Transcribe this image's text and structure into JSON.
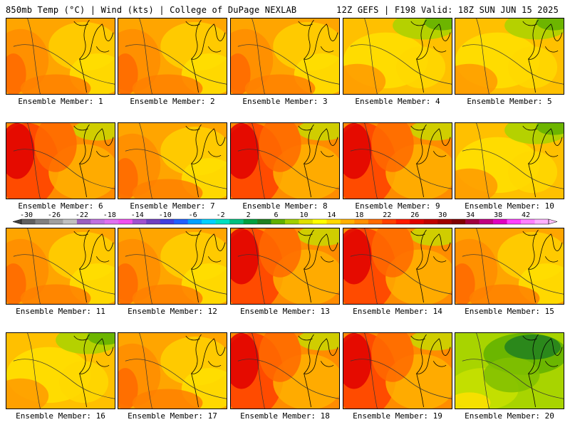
{
  "header": {
    "left": "850mb Temp (°C) | Wind (kts) | College of DuPage NEXLAB",
    "right": "12Z GEFS | F198 Valid: 18Z SUN JUN 15 2025"
  },
  "colorbar": {
    "labels": [
      "-30",
      "-26",
      "-22",
      "-18",
      "-14",
      "-10",
      "-6",
      "-2",
      "2",
      "6",
      "10",
      "14",
      "18",
      "22",
      "26",
      "30",
      "34",
      "38",
      "42"
    ],
    "colors": [
      "#5f5f5f",
      "#808080",
      "#a0a0a0",
      "#c0c0c0",
      "#9a5fbf",
      "#c070e0",
      "#e070f0",
      "#f050f0",
      "#a050d0",
      "#7040c0",
      "#4040e0",
      "#2060ff",
      "#00a0ff",
      "#00d0ff",
      "#00e0c0",
      "#00c080",
      "#00a040",
      "#208020",
      "#60b000",
      "#a0d000",
      "#e0e000",
      "#ffff00",
      "#ffd800",
      "#ffb000",
      "#ff9000",
      "#ff6a00",
      "#ff4000",
      "#ff1a00",
      "#e00000",
      "#c00000",
      "#a00000",
      "#800000",
      "#a00040",
      "#c00080",
      "#e000c0",
      "#ff40ff",
      "#ff80ff",
      "#ffb0ff"
    ]
  },
  "members": [
    {
      "label": "Ensemble Member: 1",
      "style": 0
    },
    {
      "label": "Ensemble Member: 2",
      "style": 0
    },
    {
      "label": "Ensemble Member: 3",
      "style": 0
    },
    {
      "label": "Ensemble Member: 4",
      "style": 1
    },
    {
      "label": "Ensemble Member: 5",
      "style": 1
    },
    {
      "label": "Ensemble Member: 6",
      "style": 2
    },
    {
      "label": "Ensemble Member: 7",
      "style": 0
    },
    {
      "label": "Ensemble Member: 8",
      "style": 2
    },
    {
      "label": "Ensemble Member: 9",
      "style": 2
    },
    {
      "label": "Ensemble Member: 10",
      "style": 1
    },
    {
      "label": "Ensemble Member: 11",
      "style": 0
    },
    {
      "label": "Ensemble Member: 12",
      "style": 0
    },
    {
      "label": "Ensemble Member: 13",
      "style": 2
    },
    {
      "label": "Ensemble Member: 14",
      "style": 2
    },
    {
      "label": "Ensemble Member: 15",
      "style": 0
    },
    {
      "label": "Ensemble Member: 16",
      "style": 1
    },
    {
      "label": "Ensemble Member: 17",
      "style": 0
    },
    {
      "label": "Ensemble Member: 18",
      "style": 2
    },
    {
      "label": "Ensemble Member: 19",
      "style": 2
    },
    {
      "label": "Ensemble Member: 20",
      "style": 3
    }
  ]
}
